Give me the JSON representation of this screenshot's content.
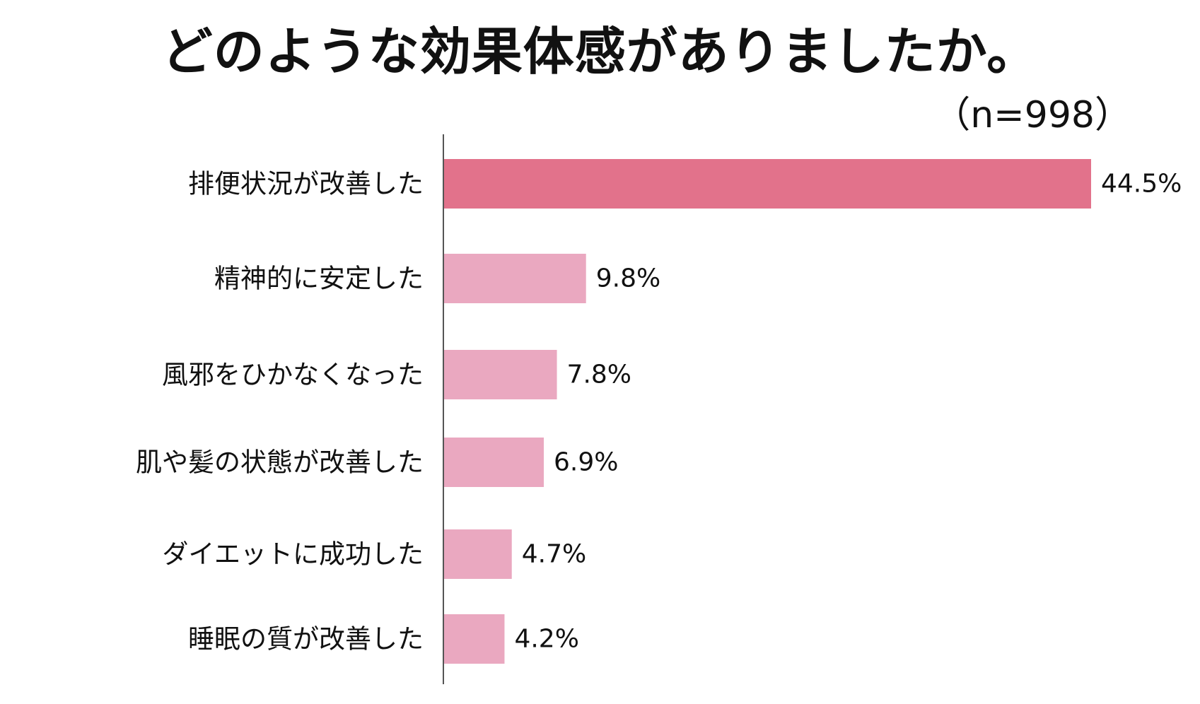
{
  "title": "どのような効果体感がありましたか。",
  "sample_size": "（n=998）",
  "colors": {
    "highlight_bar": "#e2728b",
    "bar": "#eaa8c0",
    "axis": "#555555",
    "text": "#111111"
  },
  "chart_data": {
    "type": "bar",
    "orientation": "horizontal",
    "title": "どのような効果体感がありましたか。",
    "subtitle": "（n=998）",
    "categories": [
      "排便状況が改善した",
      "精神的に安定した",
      "風邪をひかなくなった",
      "肌や髪の状態が改善した",
      "ダイエットに成功した",
      "睡眠の質が改善した"
    ],
    "values": [
      44.5,
      9.8,
      7.8,
      6.9,
      4.7,
      4.2
    ],
    "value_labels": [
      "44.5%",
      "9.8%",
      "7.8%",
      "6.9%",
      "4.7%",
      "4.2%"
    ],
    "unit": "%",
    "highlight_index": 0,
    "xlim": [
      0,
      44.5
    ],
    "grid": false,
    "legend": "none"
  }
}
